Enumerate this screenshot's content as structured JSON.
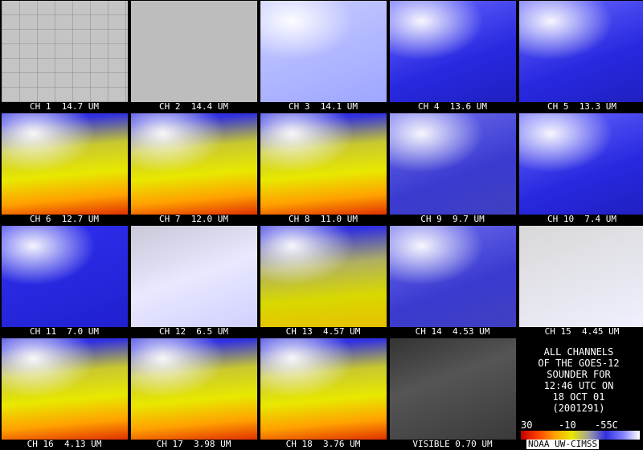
{
  "panels": [
    {
      "label": "CH 1  14.7 UM"
    },
    {
      "label": "CH 2  14.4 UM"
    },
    {
      "label": "CH 3  14.1 UM"
    },
    {
      "label": "CH 4  13.6 UM"
    },
    {
      "label": "CH 5  13.3 UM"
    },
    {
      "label": "CH 6  12.7 UM"
    },
    {
      "label": "CH 7  12.0 UM"
    },
    {
      "label": "CH 8  11.0 UM"
    },
    {
      "label": "CH 9  9.7 UM"
    },
    {
      "label": "CH 10  7.4 UM"
    },
    {
      "label": "CH 11  7.0 UM"
    },
    {
      "label": "CH 12  6.5 UM"
    },
    {
      "label": "CH 13  4.57 UM"
    },
    {
      "label": "CH 14  4.53 UM"
    },
    {
      "label": "CH 15  4.45 UM"
    },
    {
      "label": "CH 16  4.13 UM"
    },
    {
      "label": "CH 17  3.98 UM"
    },
    {
      "label": "CH 18  3.76 UM"
    },
    {
      "label": "VISIBLE 0.70 UM"
    }
  ],
  "caption": {
    "lines": [
      "ALL CHANNELS",
      "OF THE GOES-12",
      "SOUNDER FOR",
      "12:46 UTC ON",
      "18 OCT 01",
      "(2001291)"
    ]
  },
  "colorbar": {
    "labels": [
      "30",
      "-10",
      "-55C"
    ],
    "credit": "NOAA UW-CIMSS"
  }
}
